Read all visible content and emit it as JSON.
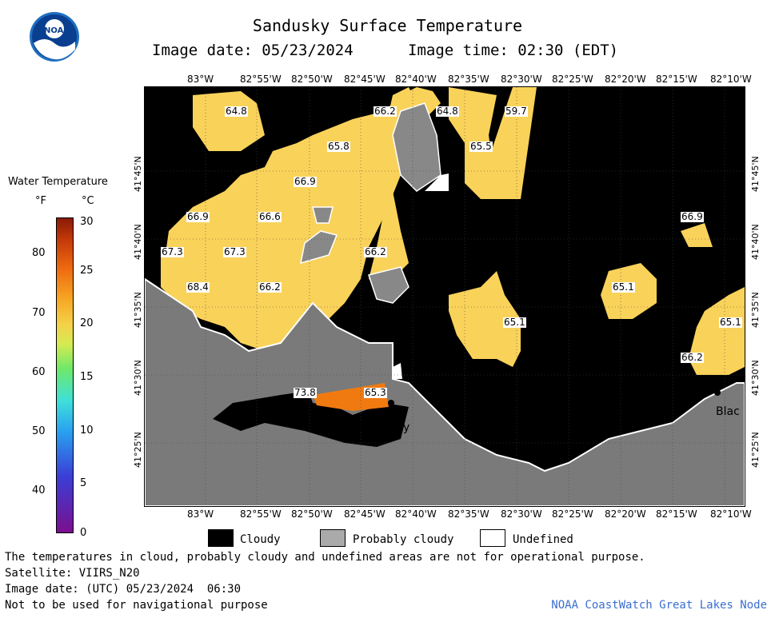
{
  "header": {
    "title": "Sandusky Surface Temperature",
    "date_line": "Image date: 05/23/2024",
    "time_line": "Image time: 02:30 (EDT)"
  },
  "legend": {
    "title": "Water Temperature",
    "unit_f": "°F",
    "unit_c": "°C",
    "f_ticks": [
      "80",
      "70",
      "60",
      "50",
      "40"
    ],
    "c_ticks": [
      "30",
      "25",
      "20",
      "15",
      "10",
      "5",
      "0"
    ]
  },
  "map": {
    "lon_labels": [
      "83°W",
      "82°55'W",
      "82°50'W",
      "82°45'W",
      "82°40'W",
      "82°35'W",
      "82°30'W",
      "82°25'W",
      "82°20'W",
      "82°15'W",
      "82°10'W"
    ],
    "lat_labels": [
      "41°45'N",
      "41°40'N",
      "41°35'N",
      "41°30'N",
      "41°25'N"
    ],
    "temperature_labels": [
      "64.8",
      "66.2",
      "64.8",
      "59.7",
      "65.8",
      "65.5",
      "66.9",
      "66.9",
      "66.6",
      "66.9",
      "67.3",
      "67.3",
      "66.2",
      "68.4",
      "66.2",
      "65.1",
      "65.1",
      "65.1",
      "66.2",
      "73.8",
      "65.3"
    ],
    "place_labels": [
      "Sandusky",
      "Blac"
    ]
  },
  "key": {
    "cloudy": "Cloudy",
    "probably_cloudy": "Probably cloudy",
    "undefined": "Undefined"
  },
  "footer": {
    "note": "The temperatures in cloud, probably cloudy and undefined areas are not for operational purpose.",
    "satellite": "Satellite: VIIRS_N20",
    "utc": "Image date: (UTC) 05/23/2024  06:30",
    "nav": "Not to be used for navigational purpose",
    "node": "NOAA CoastWatch Great Lakes Node"
  },
  "colors": {
    "cloudy": "#000000",
    "probably_cloudy": "#aaaaaa",
    "undefined": "#ffffff",
    "land": "#777777",
    "warm_water": "#f9d25a",
    "hot_water": "#f07a10",
    "link": "#3b6fd0"
  }
}
